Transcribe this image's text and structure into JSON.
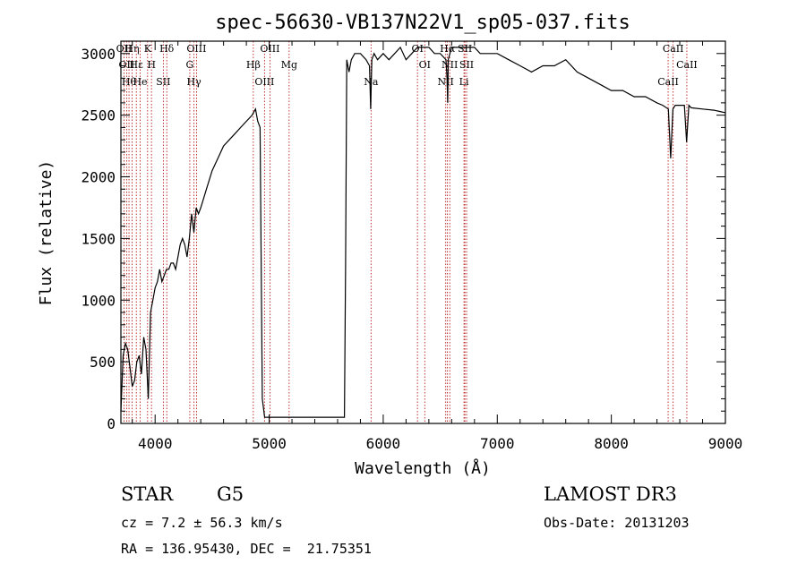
{
  "chart_data": {
    "type": "line",
    "title": "spec-56630-VB137N22V1_sp05-037.fits",
    "xlabel": "Wavelength (Å)",
    "ylabel": "Flux (relative)",
    "xlim": [
      3700,
      9000
    ],
    "ylim": [
      0,
      3100
    ],
    "xticks": [
      4000,
      5000,
      6000,
      7000,
      8000,
      9000
    ],
    "yticks": [
      0,
      500,
      1000,
      1500,
      2000,
      2500,
      3000
    ],
    "series": [
      {
        "x": [
          3700,
          3720,
          3740,
          3760,
          3780,
          3800,
          3820,
          3840,
          3860,
          3880,
          3900,
          3920,
          3940,
          3960,
          3980,
          4000,
          4020,
          4040,
          4060,
          4080,
          4100,
          4120,
          4140,
          4160,
          4180,
          4200,
          4220,
          4240,
          4260,
          4280,
          4300,
          4320,
          4340,
          4360,
          4380,
          4400,
          4450,
          4500,
          4550,
          4600,
          4650,
          4700,
          4750,
          4800,
          4850,
          4880,
          4900,
          4920,
          4940,
          4960,
          5660,
          5670,
          5680,
          5700,
          5720,
          5750,
          5800,
          5850,
          5880,
          5890,
          5900,
          5920,
          5950,
          6000,
          6050,
          6100,
          6150,
          6200,
          6250,
          6300,
          6350,
          6400,
          6450,
          6500,
          6550,
          6560,
          6565,
          6570,
          6600,
          6650,
          6700,
          6750,
          6800,
          6850,
          6900,
          6950,
          7000,
          7100,
          7200,
          7300,
          7400,
          7500,
          7600,
          7700,
          7800,
          7900,
          8000,
          8100,
          8200,
          8300,
          8400,
          8450,
          8500,
          8520,
          8540,
          8560,
          8600,
          8640,
          8660,
          8680,
          8700,
          8800,
          8900,
          8950,
          9000
        ],
        "y": [
          100,
          550,
          650,
          600,
          450,
          300,
          350,
          500,
          550,
          400,
          700,
          600,
          200,
          900,
          1000,
          1100,
          1150,
          1250,
          1150,
          1200,
          1250,
          1250,
          1300,
          1300,
          1250,
          1350,
          1450,
          1500,
          1450,
          1350,
          1500,
          1700,
          1550,
          1750,
          1700,
          1750,
          1900,
          2050,
          2150,
          2250,
          2300,
          2350,
          2400,
          2450,
          2500,
          2550,
          2450,
          2400,
          200,
          50,
          50,
          1300,
          2950,
          2850,
          2950,
          3000,
          3000,
          2950,
          2900,
          2550,
          2950,
          3000,
          2950,
          3000,
          2950,
          3000,
          3050,
          2950,
          3000,
          3050,
          3050,
          3050,
          3000,
          3000,
          2950,
          2800,
          2600,
          2950,
          3050,
          3050,
          3050,
          3050,
          3050,
          3000,
          3000,
          3000,
          3000,
          2950,
          2900,
          2850,
          2900,
          2900,
          2950,
          2850,
          2800,
          2750,
          2700,
          2700,
          2650,
          2650,
          2600,
          2580,
          2550,
          2150,
          2550,
          2580,
          2580,
          2580,
          2280,
          2580,
          2560,
          2550,
          2540,
          2530,
          2520
        ],
        "y_comment_free": true
      }
    ],
    "lines": [
      {
        "x": 3727,
        "label": "OII"
      },
      {
        "x": 3750,
        "label": "OII"
      },
      {
        "x": 3771,
        "label": "Hθ"
      },
      {
        "x": 3798,
        "label": "Hη"
      },
      {
        "x": 3835,
        "label": "Hε"
      },
      {
        "x": 3869,
        "label": "He"
      },
      {
        "x": 3934,
        "label": "K"
      },
      {
        "x": 3968,
        "label": "H"
      },
      {
        "x": 4072,
        "label": "SII"
      },
      {
        "x": 4102,
        "label": "Hδ"
      },
      {
        "x": 4304,
        "label": "G"
      },
      {
        "x": 4341,
        "label": "Hγ"
      },
      {
        "x": 4363,
        "label": "OIII"
      },
      {
        "x": 4861,
        "label": "Hβ"
      },
      {
        "x": 4959,
        "label": "OIII"
      },
      {
        "x": 5007,
        "label": "OIII"
      },
      {
        "x": 5175,
        "label": "Mg"
      },
      {
        "x": 5893,
        "label": "Na"
      },
      {
        "x": 6300,
        "label": "OI"
      },
      {
        "x": 6364,
        "label": "OI"
      },
      {
        "x": 6548,
        "label": "NII"
      },
      {
        "x": 6563,
        "label": "Hα"
      },
      {
        "x": 6583,
        "label": "NII"
      },
      {
        "x": 6708,
        "label": "Li"
      },
      {
        "x": 6716,
        "label": "SII"
      },
      {
        "x": 6731,
        "label": "SII"
      },
      {
        "x": 8498,
        "label": "CaII"
      },
      {
        "x": 8542,
        "label": "CaII"
      },
      {
        "x": 8662,
        "label": "CaII"
      }
    ]
  },
  "info": {
    "object_class": "STAR",
    "subclass": "G5",
    "survey": "LAMOST DR3",
    "cz": "cz = 7.2 ± 56.3 km/s",
    "obs_date": "Obs-Date: 20131203",
    "coords": "RA = 136.95430, DEC =  21.75351"
  }
}
